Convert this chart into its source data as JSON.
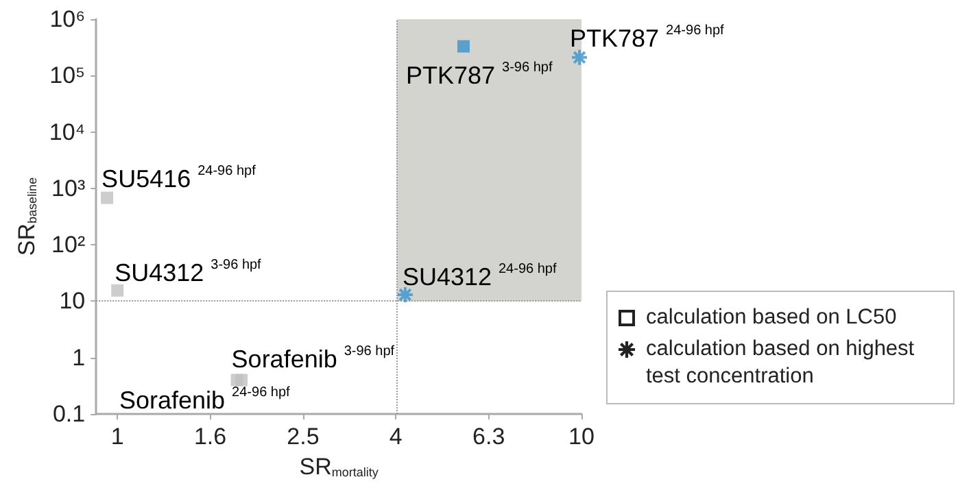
{
  "chart_data": {
    "type": "scatter",
    "xlabel": "SR$_{mortality}$",
    "ylabel": "SR$_{baseline}$",
    "log": "xy",
    "grid": false,
    "legend": "right",
    "xlim": [
      0.9,
      10
    ],
    "xticks": [
      1,
      {
        "value": 1.585,
        "label": "1.6"
      },
      {
        "value": 2.512,
        "label": "2.5"
      },
      {
        "value": 3.981,
        "label": "4"
      },
      {
        "value": 6.31,
        "label": "6.3"
      },
      10
    ],
    "ylim": [
      0.1,
      1000000
    ],
    "yticks": [
      0.1,
      1,
      10,
      {
        "value": 100,
        "label": "10²"
      },
      {
        "value": 1000,
        "label": "10³"
      },
      {
        "value": 10000,
        "label": "10⁴"
      },
      {
        "value": 100000,
        "label": "10⁵"
      },
      {
        "value": 1000000,
        "label": "10⁶"
      }
    ],
    "series": [
      {
        "name": "calculation based on LC50",
        "marker": "square",
        "x": [
          0.95,
          1.0,
          1.81,
          1.85,
          5.57
        ],
        "values": [
          680,
          15.5,
          0.4,
          0.4,
          330000
        ],
        "colors": [
          "#c0c0c0",
          "#c0c0c0",
          "#c0c0c0",
          "#c0c0c0",
          "#3b93cc"
        ]
      },
      {
        "name": "calculation based on highest test concentration",
        "marker": "cross",
        "x": [
          4.17,
          9.9
        ],
        "values": [
          13,
          210000
        ],
        "colors": [
          "#3b93cc",
          "#3b93cc"
        ]
      }
    ],
    "ref_lines": [
      {
        "axis": "x",
        "value": 4,
        "color": "#999999",
        "line_style": "dotted"
      },
      {
        "axis": "y",
        "value": 10,
        "color": "#999999",
        "line_style": "dotted"
      }
    ],
    "bands": [
      {
        "axis": "x",
        "from": 4,
        "to": 10,
        "color": "#d3d3cf"
      }
    ],
    "annotations": [
      {
        "text": "SU5416 $^{24-96 hpf}$",
        "x": 0.95,
        "y": 680
      },
      {
        "text": "SU4312 $^{3-96 hpf}$",
        "x": 1.0,
        "y": 15.5
      },
      {
        "text": "Sorafenib $^{3-96 hpf}$",
        "x": 1.81,
        "y": 0.4
      },
      {
        "text": "Sorafenib $^{24-96 hpf}$",
        "x": 1.85,
        "y": 0.4
      },
      {
        "text": "SU4312 $^{24-96 hpf}$",
        "x": 4.17,
        "y": 13
      },
      {
        "text": "PTK787 $^{3-96 hpf}$",
        "x": 5.57,
        "y": 330000
      },
      {
        "text": "PTK787 $^{24-96 hpf}$",
        "x": 9.9,
        "y": 210000
      }
    ]
  }
}
